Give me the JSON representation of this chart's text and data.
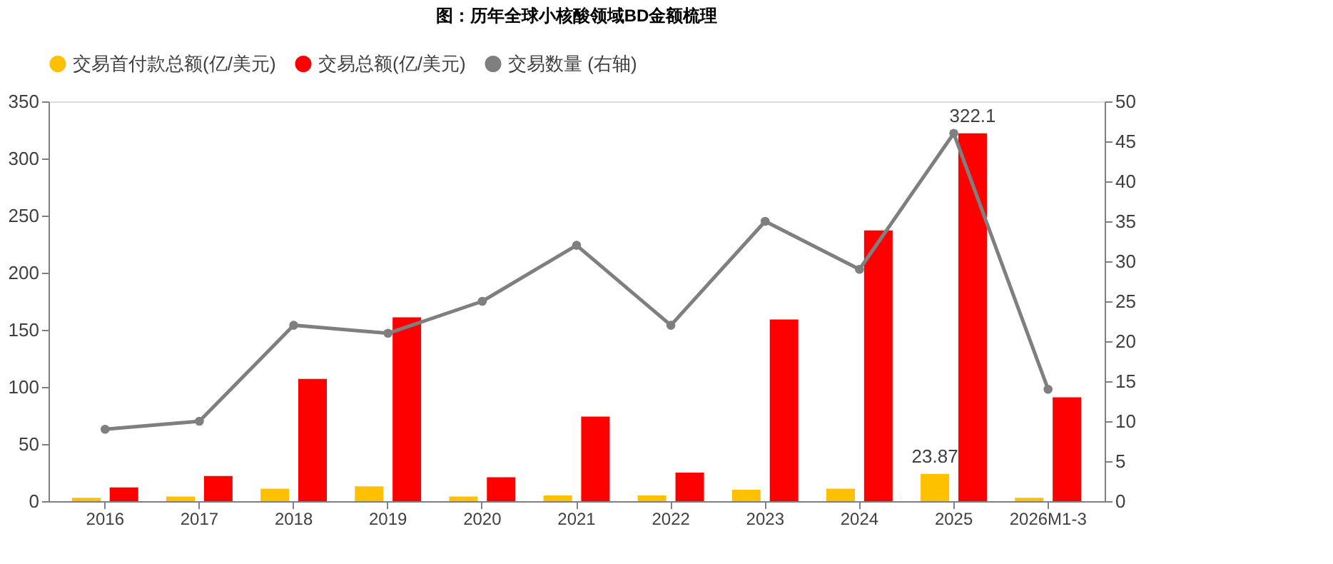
{
  "chart_data": {
    "type": "bar",
    "title": "图：历年全球小核酸领域BD金额梳理",
    "categories": [
      "2016",
      "2017",
      "2018",
      "2019",
      "2020",
      "2021",
      "2022",
      "2023",
      "2024",
      "2025",
      "2026M1-3"
    ],
    "series": [
      {
        "name": "交易首付款总额(亿/美元)",
        "color": "#ffc000",
        "values": [
          3,
          4,
          11,
          13,
          4,
          5,
          5,
          10,
          11,
          23.87,
          3
        ],
        "value_labels": [
          null,
          null,
          null,
          null,
          null,
          null,
          null,
          null,
          null,
          "23.87",
          null
        ]
      },
      {
        "name": "交易总额(亿/美元)",
        "color": "#ff0000",
        "values": [
          12,
          22,
          107,
          161,
          21,
          74,
          25,
          159,
          237,
          322.1,
          91
        ],
        "value_labels": [
          null,
          null,
          null,
          null,
          null,
          null,
          null,
          null,
          null,
          "322.1",
          null
        ]
      },
      {
        "name": "交易数量 (右轴)",
        "color": "#7f7f7f",
        "type": "line",
        "axis": "y2",
        "marker": "circle",
        "values": [
          9,
          10,
          22,
          21,
          25,
          32,
          22,
          35,
          29,
          46,
          14
        ]
      }
    ],
    "ylim": [
      0,
      350
    ],
    "yticks": [
      0,
      50,
      100,
      150,
      200,
      250,
      300,
      350
    ],
    "y2lim": [
      0,
      50
    ],
    "y2ticks": [
      0,
      5,
      10,
      15,
      20,
      25,
      30,
      35,
      40,
      45,
      50
    ],
    "grid": false,
    "legend": "top"
  }
}
